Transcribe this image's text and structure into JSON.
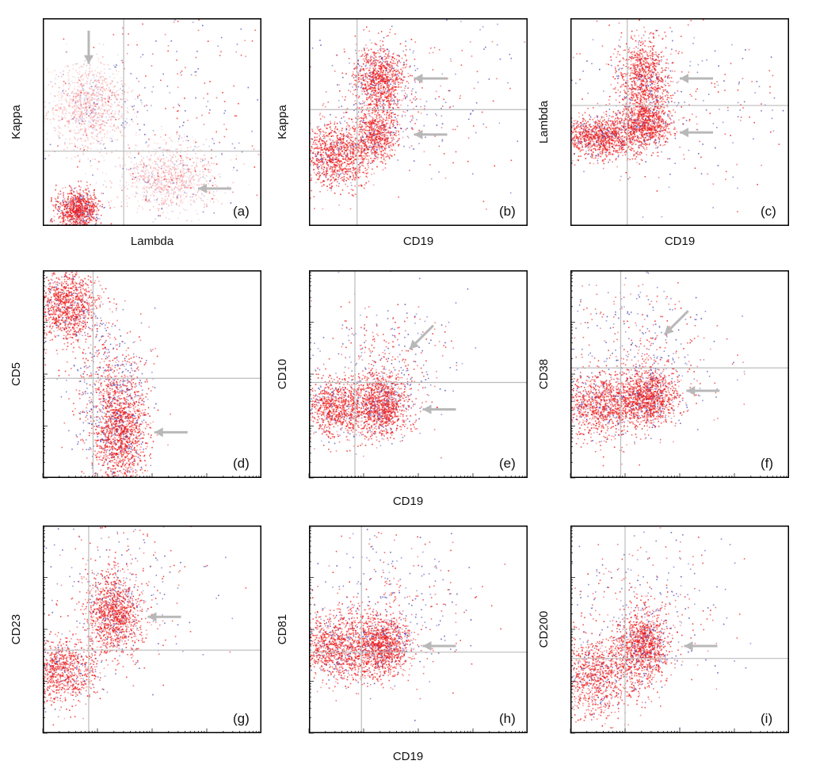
{
  "figure": {
    "row_xlabels": {
      "row2": "CD19",
      "row3": "CD19"
    },
    "colors": {
      "population": "#ee1c1c",
      "abnormal": "#4a4ab8",
      "arrow": "#b8b8b8",
      "quadrant": "#bcbcbc",
      "frame": "#000000"
    }
  },
  "chart_data": [
    {
      "type": "scatter",
      "panel": "(a)",
      "xlabel": "Lambda",
      "ylabel": "Kappa",
      "scale": "log",
      "log_ticks": false,
      "clusters": [
        {
          "x": 0.16,
          "y": 0.08,
          "spread": [
            0.05,
            0.05
          ],
          "count": 900,
          "density": "dense"
        },
        {
          "x": 0.21,
          "y": 0.58,
          "spread": [
            0.09,
            0.1
          ],
          "count": 1100,
          "density": "faint"
        },
        {
          "x": 0.58,
          "y": 0.23,
          "spread": [
            0.11,
            0.08
          ],
          "count": 1000,
          "density": "faint"
        },
        {
          "x": 0.55,
          "y": 0.55,
          "spread": [
            0.3,
            0.3
          ],
          "count": 350,
          "density": "sparse"
        }
      ],
      "gates": {
        "x": 0.37,
        "y": 0.36
      },
      "arrows": [
        {
          "x": 0.21,
          "y": 0.78,
          "dir": "down"
        },
        {
          "x": 0.71,
          "y": 0.18,
          "dir": "left"
        }
      ]
    },
    {
      "type": "scatter",
      "panel": "(b)",
      "xlabel": "CD19",
      "ylabel": "Kappa",
      "scale": "log",
      "log_ticks": false,
      "clusters": [
        {
          "x": 0.12,
          "y": 0.34,
          "spread": [
            0.08,
            0.08
          ],
          "count": 1100,
          "density": "dense"
        },
        {
          "x": 0.32,
          "y": 0.7,
          "spread": [
            0.06,
            0.08
          ],
          "count": 1000,
          "density": "dense"
        },
        {
          "x": 0.31,
          "y": 0.44,
          "spread": [
            0.05,
            0.06
          ],
          "count": 650,
          "density": "dense"
        },
        {
          "x": 0.45,
          "y": 0.6,
          "spread": [
            0.25,
            0.2
          ],
          "count": 300,
          "density": "sparse"
        }
      ],
      "gates": {
        "x": 0.22,
        "y": 0.56
      },
      "arrows": [
        {
          "x": 0.48,
          "y": 0.71,
          "dir": "left"
        },
        {
          "x": 0.48,
          "y": 0.44,
          "dir": "left"
        }
      ]
    },
    {
      "type": "scatter",
      "panel": "(c)",
      "xlabel": "CD19",
      "ylabel": "Lambda",
      "scale": "log",
      "log_ticks": false,
      "clusters": [
        {
          "x": 0.13,
          "y": 0.43,
          "spread": [
            0.09,
            0.05
          ],
          "count": 1100,
          "density": "dense"
        },
        {
          "x": 0.33,
          "y": 0.72,
          "spread": [
            0.06,
            0.09
          ],
          "count": 900,
          "density": "dense"
        },
        {
          "x": 0.34,
          "y": 0.49,
          "spread": [
            0.06,
            0.06
          ],
          "count": 900,
          "density": "dense"
        },
        {
          "x": 0.45,
          "y": 0.6,
          "spread": [
            0.25,
            0.2
          ],
          "count": 300,
          "density": "sparse"
        }
      ],
      "gates": {
        "x": 0.26,
        "y": 0.58
      },
      "arrows": [
        {
          "x": 0.5,
          "y": 0.71,
          "dir": "left"
        },
        {
          "x": 0.5,
          "y": 0.45,
          "dir": "left"
        }
      ]
    },
    {
      "type": "scatter",
      "panel": "(d)",
      "xlabel": "",
      "ylabel": "CD5",
      "scale": "log",
      "log_ticks": true,
      "clusters": [
        {
          "x": 0.11,
          "y": 0.83,
          "spread": [
            0.08,
            0.09
          ],
          "count": 1200,
          "density": "dense"
        },
        {
          "x": 0.35,
          "y": 0.23,
          "spread": [
            0.06,
            0.14
          ],
          "count": 1400,
          "density": "dense"
        },
        {
          "x": 0.3,
          "y": 0.42,
          "spread": [
            0.09,
            0.18
          ],
          "count": 600,
          "density": "sparse"
        }
      ],
      "gates": {
        "x": 0.23,
        "y": 0.48
      },
      "arrows": [
        {
          "x": 0.51,
          "y": 0.22,
          "dir": "left"
        }
      ]
    },
    {
      "type": "scatter",
      "panel": "(e)",
      "xlabel": "",
      "ylabel": "CD10",
      "scale": "log",
      "log_ticks": true,
      "clusters": [
        {
          "x": 0.12,
          "y": 0.34,
          "spread": [
            0.09,
            0.07
          ],
          "count": 1000,
          "density": "dense"
        },
        {
          "x": 0.33,
          "y": 0.35,
          "spread": [
            0.06,
            0.08
          ],
          "count": 1100,
          "density": "dense"
        },
        {
          "x": 0.36,
          "y": 0.55,
          "spread": [
            0.15,
            0.15
          ],
          "count": 350,
          "density": "sparse"
        }
      ],
      "gates": {
        "x": 0.21,
        "y": 0.46
      },
      "arrows": [
        {
          "x": 0.52,
          "y": 0.33,
          "dir": "left"
        },
        {
          "x": 0.46,
          "y": 0.62,
          "dir": "down-left"
        }
      ]
    },
    {
      "type": "scatter",
      "panel": "(f)",
      "xlabel": "",
      "ylabel": "CD38",
      "scale": "log",
      "log_ticks": true,
      "clusters": [
        {
          "x": 0.13,
          "y": 0.35,
          "spread": [
            0.09,
            0.08
          ],
          "count": 1000,
          "density": "dense"
        },
        {
          "x": 0.35,
          "y": 0.39,
          "spread": [
            0.07,
            0.07
          ],
          "count": 1200,
          "density": "dense"
        },
        {
          "x": 0.3,
          "y": 0.62,
          "spread": [
            0.2,
            0.2
          ],
          "count": 450,
          "density": "sparse"
        }
      ],
      "gates": {
        "x": 0.23,
        "y": 0.53
      },
      "arrows": [
        {
          "x": 0.53,
          "y": 0.42,
          "dir": "left"
        },
        {
          "x": 0.43,
          "y": 0.69,
          "dir": "down-left"
        }
      ]
    },
    {
      "type": "scatter",
      "panel": "(g)",
      "xlabel": "",
      "ylabel": "CD23",
      "scale": "log",
      "log_ticks": true,
      "clusters": [
        {
          "x": 0.09,
          "y": 0.3,
          "spread": [
            0.08,
            0.08
          ],
          "count": 900,
          "density": "dense"
        },
        {
          "x": 0.32,
          "y": 0.58,
          "spread": [
            0.06,
            0.1
          ],
          "count": 1200,
          "density": "dense"
        },
        {
          "x": 0.36,
          "y": 0.7,
          "spread": [
            0.2,
            0.2
          ],
          "count": 250,
          "density": "sparse"
        }
      ],
      "gates": {
        "x": 0.21,
        "y": 0.4
      },
      "arrows": [
        {
          "x": 0.48,
          "y": 0.56,
          "dir": "left"
        }
      ]
    },
    {
      "type": "scatter",
      "panel": "(h)",
      "xlabel": "",
      "ylabel": "CD81",
      "scale": "log",
      "log_ticks": true,
      "clusters": [
        {
          "x": 0.13,
          "y": 0.42,
          "spread": [
            0.09,
            0.08
          ],
          "count": 1100,
          "density": "dense"
        },
        {
          "x": 0.33,
          "y": 0.42,
          "spread": [
            0.06,
            0.07
          ],
          "count": 1100,
          "density": "dense"
        },
        {
          "x": 0.35,
          "y": 0.63,
          "spread": [
            0.2,
            0.18
          ],
          "count": 400,
          "density": "sparse"
        }
      ],
      "gates": {
        "x": 0.24,
        "y": 0.39
      },
      "arrows": [
        {
          "x": 0.52,
          "y": 0.42,
          "dir": "left"
        }
      ]
    },
    {
      "type": "scatter",
      "panel": "(i)",
      "xlabel": "",
      "ylabel": "CD200",
      "scale": "log",
      "log_ticks": true,
      "clusters": [
        {
          "x": 0.12,
          "y": 0.28,
          "spread": [
            0.09,
            0.1
          ],
          "count": 1000,
          "density": "dense"
        },
        {
          "x": 0.33,
          "y": 0.42,
          "spread": [
            0.06,
            0.09
          ],
          "count": 1100,
          "density": "dense"
        },
        {
          "x": 0.3,
          "y": 0.6,
          "spread": [
            0.2,
            0.22
          ],
          "count": 350,
          "density": "sparse"
        }
      ],
      "gates": {
        "x": 0.25,
        "y": 0.36
      },
      "arrows": [
        {
          "x": 0.52,
          "y": 0.42,
          "dir": "left"
        }
      ]
    }
  ]
}
